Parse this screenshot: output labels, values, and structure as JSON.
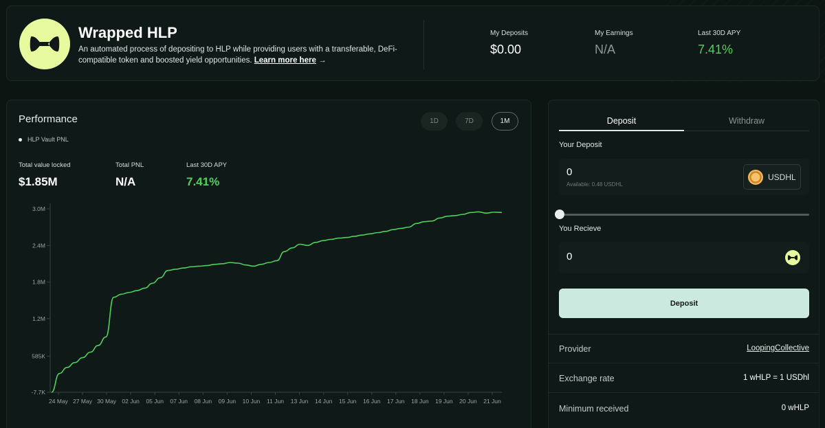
{
  "hero": {
    "title": "Wrapped HLP",
    "description": "An automated process of depositing to HLP while providing users with a transferable, DeFi-compatible token and boosted yield opportunities.",
    "learn_more": "Learn more here",
    "learn_arrow": "→",
    "stats": [
      {
        "label": "My Deposits",
        "value": "$0.00"
      },
      {
        "label": "My Earnings",
        "value": "N/A"
      },
      {
        "label": "Last 30D APY",
        "value": "7.41%"
      }
    ],
    "colors": {
      "logo": "#e7fb9e",
      "positive": "#4ed15c"
    }
  },
  "performance": {
    "title": "Performance",
    "legend": "HLP Vault PNL",
    "ranges": [
      "1D",
      "7D",
      "1M"
    ],
    "active_range": "1M",
    "stats": [
      {
        "label": "Total value locked",
        "value": "$1.85M"
      },
      {
        "label": "Total PNL",
        "value": "N/A"
      },
      {
        "label": "Last 30D APY",
        "value": "7.41%"
      }
    ]
  },
  "chart_data": {
    "type": "line",
    "title": "",
    "xlabel": "",
    "ylabel": "",
    "y_ticks": [
      "3.0M",
      "2.4M",
      "1.8M",
      "1.2M",
      "585K",
      "-7.7K"
    ],
    "y_tick_values": [
      3000000,
      2400000,
      1800000,
      1200000,
      585000,
      -7700
    ],
    "ylim": [
      -7700,
      3000000
    ],
    "x_ticks": [
      "24 May",
      "27 May",
      "30 May",
      "02 Jun",
      "05 Jun",
      "07 Jun",
      "08 Jun",
      "09 Jun",
      "10 Jun",
      "11 Jun",
      "13 Jun",
      "14 Jun",
      "15 Jun",
      "16 Jun",
      "17 Jun",
      "18 Jun",
      "19 Jun",
      "20 Jun",
      "21 Jun"
    ],
    "grid": false,
    "line_color": "#4ed15c",
    "series": [
      {
        "values": [
          -7700,
          300000,
          400000,
          480000,
          560000,
          650000,
          760000,
          900000,
          1550000,
          1600000,
          1630000,
          1660000,
          1700000,
          1780000,
          1870000,
          1990000,
          2010000,
          2030000,
          2050000,
          2060000,
          2070000,
          2090000,
          2100000,
          2120000,
          2110000,
          2080000,
          2060000,
          2090000,
          2120000,
          2150000,
          2300000,
          2360000,
          2420000,
          2400000,
          2450000,
          2480000,
          2500000,
          2520000,
          2530000,
          2550000,
          2570000,
          2590000,
          2610000,
          2630000,
          2660000,
          2680000,
          2700000,
          2760000,
          2790000,
          2800000,
          2850000,
          2880000,
          2890000,
          2910000,
          2940000,
          2950000,
          2930000,
          2945000,
          2940000
        ]
      }
    ]
  },
  "deposit": {
    "tabs": [
      "Deposit",
      "Withdraw"
    ],
    "active_tab": "Deposit",
    "your_deposit_label": "Your Deposit",
    "deposit_value": "0",
    "available": "Available: 0.48 USDHL",
    "token": "USDHL",
    "slider_percent": 0,
    "receive_label": "You Recieve",
    "receive_value": "0",
    "button": "Deposit",
    "button_color": "#cce9df",
    "details": [
      {
        "key": "Provider",
        "value": "LoopingCollective"
      },
      {
        "key": "Exchange rate",
        "value": "1 wHLP = 1 USDhl"
      },
      {
        "key": "Minimum received",
        "value": "0 wHLP"
      }
    ]
  }
}
